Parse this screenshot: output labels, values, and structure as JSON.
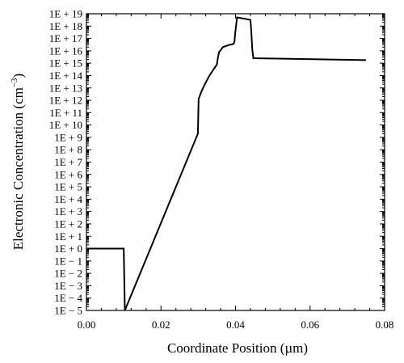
{
  "chart_data": {
    "type": "line",
    "xlabel": "Coordinate Position (µm)",
    "ylabel": "Electronic Concentration (cm",
    "ylabel_sup": "−3",
    "ylabel_close": ")",
    "y_scale": "log",
    "xlim": [
      0.0,
      0.08
    ],
    "ylim_exponent": [
      -5,
      19
    ],
    "grid": false,
    "x_ticks": [
      "0.00",
      "0.02",
      "0.04",
      "0.06",
      "0.08"
    ],
    "x_tick_values": [
      0.0,
      0.02,
      0.04,
      0.06,
      0.08
    ],
    "y_ticks": [
      "1E + 19",
      "1E + 18",
      "1E + 17",
      "1E + 16",
      "1E + 15",
      "1E + 14",
      "1E + 13",
      "1E + 12",
      "1E + 11",
      "1E + 10",
      "1E + 9",
      "1E + 8",
      "1E + 7",
      "1E + 6",
      "1E + 5",
      "1E + 4",
      "1E + 3",
      "1E + 2",
      "1E + 1",
      "1E + 0",
      "1E − 1",
      "1E − 2",
      "1E − 3",
      "1E − 4",
      "1E − 5"
    ],
    "y_tick_exponents": [
      19,
      18,
      17,
      16,
      15,
      14,
      13,
      12,
      11,
      10,
      9,
      8,
      7,
      6,
      5,
      4,
      3,
      2,
      1,
      0,
      -1,
      -2,
      -3,
      -4,
      -5
    ],
    "series": [
      {
        "x": [
          0.0,
          0.0026,
          0.0026,
          0.01,
          0.0103,
          0.0299,
          0.0301,
          0.0307,
          0.0316,
          0.033,
          0.035,
          0.0353,
          0.0356,
          0.036,
          0.0366,
          0.0375,
          0.0386,
          0.0394,
          0.0397,
          0.0399,
          0.0403,
          0.0404,
          0.0424,
          0.044,
          0.0442,
          0.0445,
          0.0448,
          0.075
        ],
        "y_exponent": [
          0.0,
          0.0,
          0.0,
          0.0,
          -5.0,
          9.3,
          12.1,
          12.6,
          13.2,
          14.0,
          14.9,
          15.5,
          15.9,
          16.05,
          16.3,
          16.4,
          16.5,
          16.55,
          16.7,
          17.4,
          18.4,
          18.7,
          18.6,
          18.5,
          17.7,
          16.1,
          15.4,
          15.25
        ]
      }
    ]
  }
}
